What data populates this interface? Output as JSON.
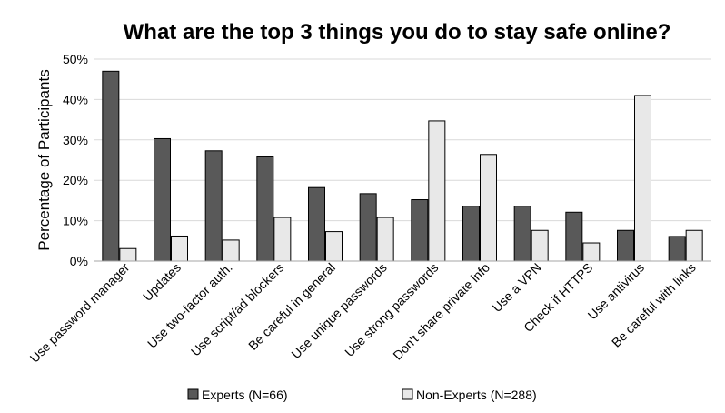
{
  "chart_data": {
    "type": "bar",
    "title": "What are the top 3 things you do to stay safe online?",
    "xlabel": "",
    "ylabel": "Percentage of Participants",
    "ylim": [
      0,
      50
    ],
    "y_ticks": [
      "0%",
      "10%",
      "20%",
      "30%",
      "40%",
      "50%"
    ],
    "y_tick_values": [
      0,
      10,
      20,
      30,
      40,
      50
    ],
    "grid": true,
    "legend_position": "bottom",
    "categories": [
      "Use password manager",
      "Updates",
      "Use two-factor auth.",
      "Use script/ad blockers",
      "Be careful in general",
      "Use unique passwords",
      "Use strong passwords",
      "Don't share private info",
      "Use a VPN",
      "Check if HTTPS",
      "Use antivirus",
      "Be careful with links"
    ],
    "series": [
      {
        "name": "Experts (N=66)",
        "color": "#595959",
        "values": [
          47,
          30.3,
          27.3,
          25.8,
          18.2,
          16.7,
          15.2,
          13.6,
          13.6,
          12.1,
          7.6,
          6.1
        ]
      },
      {
        "name": "Non-Experts (N=288)",
        "color": "#e8e8e8",
        "values": [
          3.1,
          6.2,
          5.2,
          10.8,
          7.3,
          10.8,
          34.7,
          26.4,
          7.6,
          4.5,
          41,
          7.6
        ]
      }
    ]
  }
}
